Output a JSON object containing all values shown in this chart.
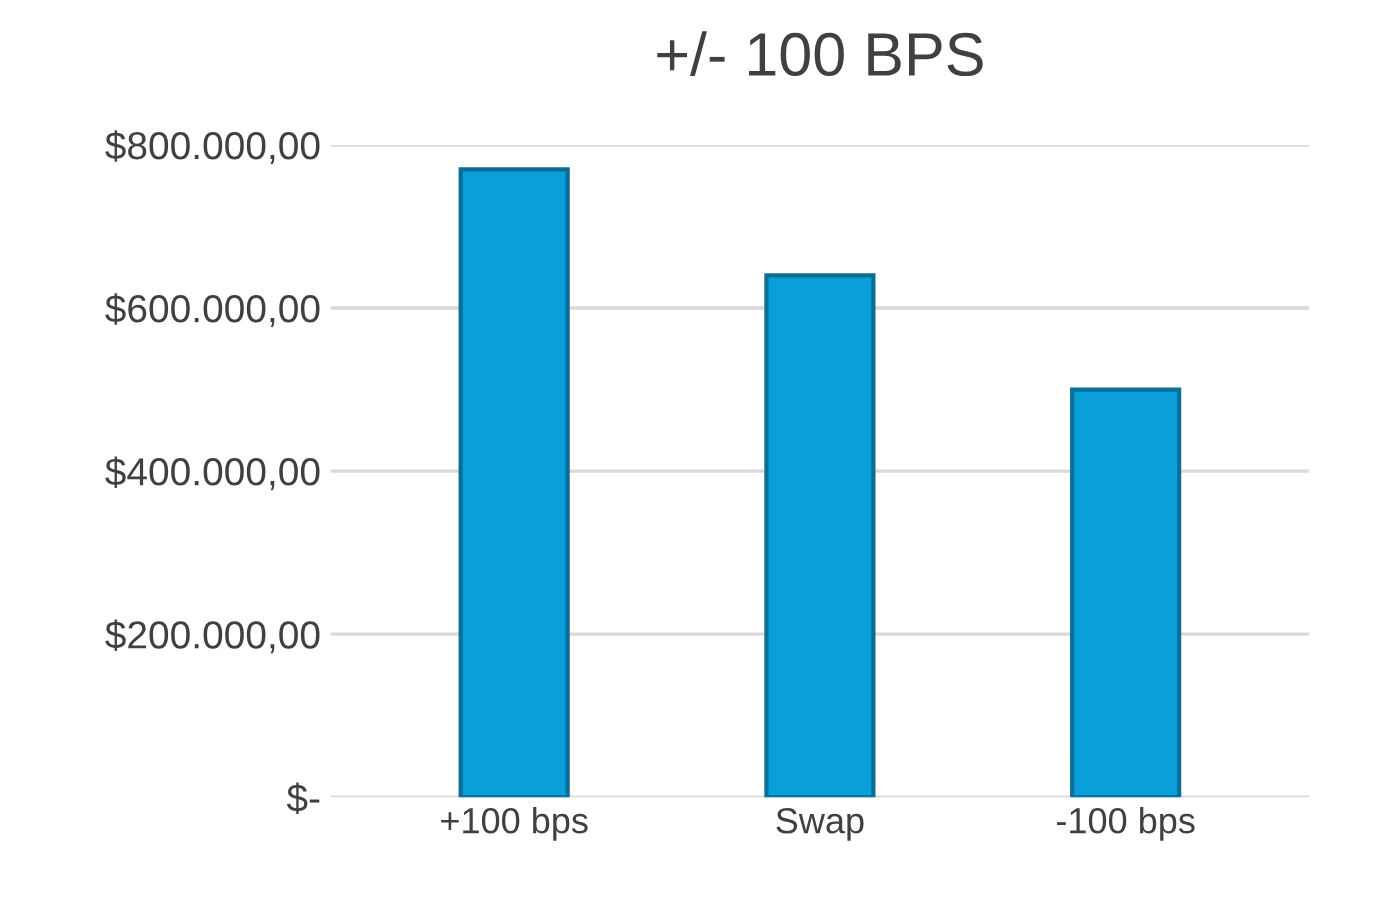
{
  "chart_data": {
    "type": "bar",
    "title": "+/- 100 BPS",
    "categories": [
      "+100 bps",
      "Swap",
      "-100 bps"
    ],
    "values": [
      770000,
      640000,
      500000
    ],
    "color": "#0a9fda",
    "ylim": [
      0,
      800000
    ],
    "yticks": [
      {
        "value": 0,
        "label": "$-"
      },
      {
        "value": 200000,
        "label": "$200.000,00"
      },
      {
        "value": 400000,
        "label": "$400.000,00"
      },
      {
        "value": 600000,
        "label": "$600.000,00"
      },
      {
        "value": 800000,
        "label": "$800.000,00"
      }
    ],
    "grid": "y"
  }
}
